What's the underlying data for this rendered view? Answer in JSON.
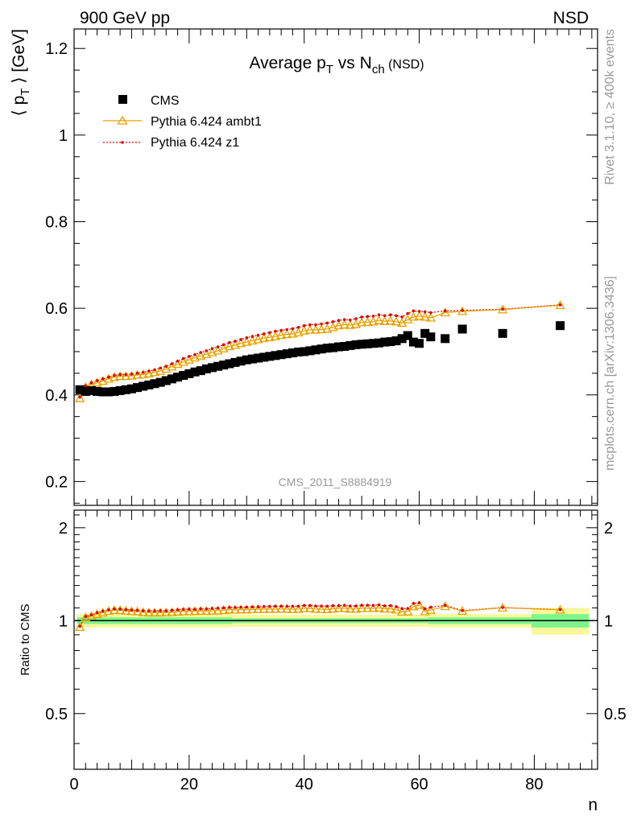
{
  "header": {
    "left": "900 GeV pp",
    "right": "NSD"
  },
  "side_labels": {
    "top": "Rivet 3.1.10, ≥ 400k events",
    "bottom": "mcplots.cern.ch [arXiv:1306.3436]"
  },
  "analysis_tag": "CMS_2011_S8884919",
  "colors": {
    "data": "#000000",
    "ambt1": "#e8a000",
    "z1": "#e00000",
    "band_inner": "#7df58c",
    "band_outer": "#f9f99c"
  },
  "chart_data": [
    {
      "type": "scatter",
      "title": "Average p_T vs N_ch (NSD)",
      "title_parts": {
        "a": "Average p",
        "a_sub": "T",
        "b": " vs N",
        "b_sub": "ch",
        "c": " (NSD)"
      },
      "ylabel": "⟨ p_T ⟩ [GeV]",
      "ylabel_parts": {
        "a": "⟨ p",
        "sub": "T",
        "b": " ⟩ [GeV]"
      },
      "xlim": [
        0,
        91
      ],
      "ylim": [
        0.145,
        1.245
      ],
      "yticks": [
        "0.2",
        "0.4",
        "0.6",
        "0.8",
        "1",
        "1.2"
      ],
      "legend_position": "top-left",
      "legend": [
        "CMS",
        "Pythia 6.424 ambt1",
        "Pythia 6.424 z1"
      ],
      "series": [
        {
          "name": "CMS",
          "x": [
            1,
            2,
            3,
            4,
            5,
            6,
            7,
            8,
            9,
            10,
            11,
            12,
            13,
            14,
            15,
            16,
            17,
            18,
            19,
            20,
            21,
            22,
            23,
            24,
            25,
            26,
            27,
            28,
            29,
            30,
            31,
            32,
            33,
            34,
            35,
            36,
            37,
            38,
            39,
            40,
            41,
            42,
            43,
            44,
            45,
            46,
            47,
            48,
            49,
            50,
            51,
            52,
            53,
            54,
            55,
            56,
            57,
            58,
            59,
            60,
            61,
            62,
            64.5,
            67.5,
            74.5,
            84.5
          ],
          "y": [
            0.412,
            0.408,
            0.41,
            0.408,
            0.407,
            0.407,
            0.408,
            0.41,
            0.412,
            0.414,
            0.417,
            0.42,
            0.423,
            0.426,
            0.429,
            0.433,
            0.437,
            0.441,
            0.445,
            0.449,
            0.453,
            0.456,
            0.46,
            0.463,
            0.466,
            0.469,
            0.472,
            0.475,
            0.478,
            0.481,
            0.483,
            0.485,
            0.487,
            0.489,
            0.491,
            0.493,
            0.495,
            0.497,
            0.499,
            0.5,
            0.502,
            0.504,
            0.506,
            0.508,
            0.509,
            0.511,
            0.512,
            0.514,
            0.516,
            0.517,
            0.518,
            0.519,
            0.52,
            0.522,
            0.523,
            0.525,
            0.53,
            0.537,
            0.522,
            0.519,
            0.542,
            0.534,
            0.53,
            0.552,
            0.542,
            0.56
          ]
        },
        {
          "name": "Pythia 6.424 ambt1",
          "x": [
            1,
            2,
            3,
            4,
            5,
            6,
            7,
            8,
            9,
            10,
            11,
            12,
            13,
            14,
            15,
            16,
            17,
            18,
            19,
            20,
            21,
            22,
            23,
            24,
            25,
            26,
            27,
            28,
            29,
            30,
            31,
            32,
            33,
            34,
            35,
            36,
            37,
            38,
            39,
            40,
            41,
            42,
            43,
            44,
            45,
            46,
            47,
            48,
            49,
            50,
            51,
            52,
            53,
            54,
            55,
            56,
            57,
            58,
            59,
            60,
            61,
            62,
            64.5,
            67.5,
            74.5,
            84.5
          ],
          "y": [
            0.392,
            0.418,
            0.424,
            0.428,
            0.432,
            0.437,
            0.441,
            0.443,
            0.443,
            0.444,
            0.446,
            0.447,
            0.449,
            0.452,
            0.455,
            0.46,
            0.465,
            0.471,
            0.476,
            0.481,
            0.486,
            0.49,
            0.494,
            0.498,
            0.502,
            0.507,
            0.512,
            0.515,
            0.519,
            0.522,
            0.525,
            0.528,
            0.531,
            0.533,
            0.535,
            0.538,
            0.54,
            0.541,
            0.544,
            0.548,
            0.55,
            0.55,
            0.551,
            0.552,
            0.556,
            0.56,
            0.562,
            0.561,
            0.563,
            0.567,
            0.568,
            0.569,
            0.572,
            0.57,
            0.571,
            0.569,
            0.566,
            0.574,
            0.58,
            0.582,
            0.58,
            0.578,
            0.59,
            0.593,
            0.597,
            0.607
          ]
        },
        {
          "name": "Pythia 6.424 z1",
          "x": [
            1,
            2,
            3,
            4,
            5,
            6,
            7,
            8,
            9,
            10,
            11,
            12,
            13,
            14,
            15,
            16,
            17,
            18,
            19,
            20,
            21,
            22,
            23,
            24,
            25,
            26,
            27,
            28,
            29,
            30,
            31,
            32,
            33,
            34,
            35,
            36,
            37,
            38,
            39,
            40,
            41,
            42,
            43,
            44,
            45,
            46,
            47,
            48,
            49,
            50,
            51,
            52,
            53,
            54,
            55,
            56,
            57,
            58,
            59,
            60,
            61,
            62,
            64.5,
            67.5,
            74.5,
            84.5
          ],
          "y": [
            0.395,
            0.421,
            0.428,
            0.433,
            0.437,
            0.441,
            0.445,
            0.447,
            0.447,
            0.448,
            0.45,
            0.452,
            0.455,
            0.458,
            0.462,
            0.466,
            0.472,
            0.478,
            0.484,
            0.489,
            0.493,
            0.498,
            0.502,
            0.507,
            0.511,
            0.516,
            0.521,
            0.524,
            0.528,
            0.532,
            0.535,
            0.538,
            0.541,
            0.544,
            0.547,
            0.549,
            0.551,
            0.553,
            0.556,
            0.56,
            0.562,
            0.562,
            0.564,
            0.566,
            0.569,
            0.572,
            0.574,
            0.573,
            0.576,
            0.58,
            0.581,
            0.582,
            0.585,
            0.583,
            0.585,
            0.583,
            0.58,
            0.588,
            0.594,
            0.593,
            0.592,
            0.59,
            0.594,
            0.595,
            0.598,
            0.608
          ]
        }
      ]
    },
    {
      "type": "scatter",
      "ylabel": "Ratio to CMS",
      "xlabel": "n",
      "xlim": [
        0,
        91
      ],
      "ylim": [
        0.33,
        2.28
      ],
      "log_y": true,
      "yticks": [
        "0.5",
        "1",
        "2"
      ],
      "xticks": [
        "0",
        "20",
        "40",
        "60",
        "80"
      ],
      "band": {
        "x_edges": [
          0.5,
          27.5,
          45.5,
          61.5,
          79.5,
          89.5
        ],
        "inner_half": [
          0.025,
          0.018,
          0.018,
          0.025,
          0.05
        ],
        "outer_half": [
          0.05,
          0.045,
          0.045,
          0.05,
          0.1
        ]
      },
      "series": [
        {
          "name": "Pythia 6.424 ambt1",
          "x": [
            1,
            2,
            3,
            4,
            5,
            6,
            7,
            8,
            9,
            10,
            11,
            12,
            13,
            14,
            15,
            16,
            17,
            18,
            19,
            20,
            21,
            22,
            23,
            24,
            25,
            26,
            27,
            28,
            29,
            30,
            31,
            32,
            33,
            34,
            35,
            36,
            37,
            38,
            39,
            40,
            41,
            42,
            43,
            44,
            45,
            46,
            47,
            48,
            49,
            50,
            51,
            52,
            53,
            54,
            55,
            56,
            57,
            58,
            59,
            60,
            61,
            62,
            64.5,
            67.5,
            74.5,
            84.5
          ],
          "y": [
            0.952,
            1.024,
            1.034,
            1.049,
            1.061,
            1.074,
            1.081,
            1.08,
            1.075,
            1.072,
            1.07,
            1.064,
            1.061,
            1.061,
            1.061,
            1.062,
            1.064,
            1.068,
            1.07,
            1.071,
            1.073,
            1.075,
            1.074,
            1.076,
            1.077,
            1.081,
            1.085,
            1.084,
            1.086,
            1.085,
            1.087,
            1.089,
            1.09,
            1.09,
            1.09,
            1.091,
            1.091,
            1.088,
            1.09,
            1.096,
            1.096,
            1.091,
            1.089,
            1.087,
            1.092,
            1.096,
            1.098,
            1.091,
            1.091,
            1.097,
            1.097,
            1.096,
            1.1,
            1.092,
            1.092,
            1.084,
            1.068,
            1.069,
            1.111,
            1.122,
            1.07,
            1.082,
            1.113,
            1.074,
            1.101,
            1.084
          ]
        },
        {
          "name": "Pythia 6.424 z1",
          "x": [
            1,
            2,
            3,
            4,
            5,
            6,
            7,
            8,
            9,
            10,
            11,
            12,
            13,
            14,
            15,
            16,
            17,
            18,
            19,
            20,
            21,
            22,
            23,
            24,
            25,
            26,
            27,
            28,
            29,
            30,
            31,
            32,
            33,
            34,
            35,
            36,
            37,
            38,
            39,
            40,
            41,
            42,
            43,
            44,
            45,
            46,
            47,
            48,
            49,
            50,
            51,
            52,
            53,
            54,
            55,
            56,
            57,
            58,
            59,
            60,
            61,
            62,
            64.5,
            67.5,
            74.5,
            84.5
          ],
          "y": [
            0.959,
            1.032,
            1.044,
            1.061,
            1.074,
            1.084,
            1.091,
            1.09,
            1.085,
            1.082,
            1.079,
            1.076,
            1.076,
            1.075,
            1.077,
            1.076,
            1.08,
            1.084,
            1.088,
            1.089,
            1.088,
            1.092,
            1.091,
            1.095,
            1.097,
            1.1,
            1.104,
            1.103,
            1.105,
            1.106,
            1.108,
            1.109,
            1.111,
            1.112,
            1.114,
            1.114,
            1.113,
            1.113,
            1.114,
            1.12,
            1.12,
            1.115,
            1.115,
            1.114,
            1.118,
            1.119,
            1.121,
            1.115,
            1.116,
            1.122,
            1.122,
            1.121,
            1.125,
            1.117,
            1.119,
            1.11,
            1.094,
            1.095,
            1.138,
            1.143,
            1.092,
            1.105,
            1.121,
            1.078,
            1.103,
            1.086
          ]
        }
      ]
    }
  ]
}
